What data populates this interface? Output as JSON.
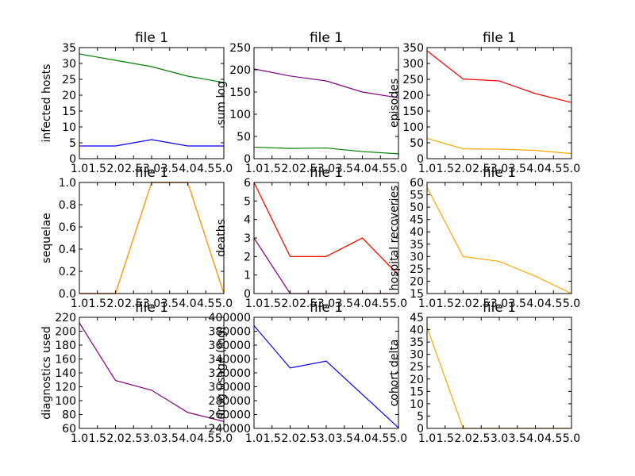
{
  "chart_data": [
    {
      "type": "line",
      "title": "file 1",
      "xlabel": "",
      "ylabel": "infected hosts",
      "x": [
        1,
        2,
        3,
        4,
        5
      ],
      "xlim": [
        1,
        5
      ],
      "xticks": [
        "1.0",
        "1.5",
        "2.0",
        "2.5",
        "3.0",
        "3.5",
        "4.0",
        "4.5",
        "5.0"
      ],
      "ylim": [
        0,
        35
      ],
      "yticks": [
        "0",
        "5",
        "10",
        "15",
        "20",
        "25",
        "30",
        "35"
      ],
      "grid": false,
      "series": [
        {
          "color": "#0000ff",
          "values": [
            4,
            4,
            6,
            4,
            4
          ]
        },
        {
          "color": "#008000",
          "values": [
            33,
            31,
            29,
            26,
            24
          ]
        }
      ]
    },
    {
      "type": "line",
      "title": "file 1",
      "xlabel": "",
      "ylabel": "sum log",
      "x": [
        1,
        2,
        3,
        4,
        5
      ],
      "xlim": [
        1,
        5
      ],
      "xticks": [
        "1.0",
        "1.5",
        "2.0",
        "2.5",
        "3.0",
        "3.5",
        "4.0",
        "4.5",
        "5.0"
      ],
      "ylim": [
        0,
        250
      ],
      "yticks": [
        "0",
        "50",
        "100",
        "150",
        "200",
        "250"
      ],
      "grid": false,
      "series": [
        {
          "color": "#800080",
          "values": [
            202,
            186,
            175,
            150,
            137
          ]
        },
        {
          "color": "#008000",
          "values": [
            26,
            23,
            24,
            16,
            11
          ]
        }
      ]
    },
    {
      "type": "line",
      "title": "file 1",
      "xlabel": "",
      "ylabel": "episodes",
      "x": [
        1,
        2,
        3,
        4,
        5
      ],
      "xlim": [
        1,
        5
      ],
      "xticks": [
        "1.0",
        "1.5",
        "2.0",
        "2.5",
        "3.0",
        "3.5",
        "4.0",
        "4.5",
        "5.0"
      ],
      "ylim": [
        0,
        350
      ],
      "yticks": [
        "0",
        "50",
        "100",
        "150",
        "200",
        "250",
        "300",
        "350"
      ],
      "grid": false,
      "series": [
        {
          "color": "#ff0000",
          "values": [
            340,
            251,
            245,
            205,
            177
          ]
        },
        {
          "color": "#ffa500",
          "values": [
            64,
            31,
            30,
            26,
            16
          ]
        }
      ]
    },
    {
      "type": "line",
      "title": "file 1",
      "xlabel": "",
      "ylabel": "sequelae",
      "x": [
        1,
        2,
        3,
        4,
        5
      ],
      "xlim": [
        1,
        5
      ],
      "xticks": [
        "1.0",
        "1.5",
        "2.0",
        "2.5",
        "3.0",
        "3.5",
        "4.0",
        "4.5",
        "5.0"
      ],
      "ylim": [
        0,
        1
      ],
      "yticks": [
        "0.0",
        "0.2",
        "0.4",
        "0.6",
        "0.8",
        "1.0"
      ],
      "grid": false,
      "series": [
        {
          "color": "#ff0000",
          "values": [
            0,
            0,
            1,
            1,
            0
          ]
        },
        {
          "color": "#ffa500",
          "values": [
            0,
            0,
            1,
            1,
            0
          ]
        }
      ]
    },
    {
      "type": "line",
      "title": "file 1",
      "xlabel": "",
      "ylabel": "deaths",
      "x": [
        1,
        2,
        3,
        4,
        5
      ],
      "xlim": [
        1,
        5
      ],
      "xticks": [
        "1.0",
        "1.5",
        "2.0",
        "2.5",
        "3.0",
        "3.5",
        "4.0",
        "4.5",
        "5.0"
      ],
      "ylim": [
        0,
        6
      ],
      "yticks": [
        "0",
        "1",
        "2",
        "3",
        "4",
        "5",
        "6"
      ],
      "grid": false,
      "series": [
        {
          "color": "#800080",
          "values": [
            3,
            0,
            0,
            0,
            0
          ]
        },
        {
          "color": "#ffa500",
          "values": [
            6,
            2,
            2,
            3,
            1
          ]
        },
        {
          "color": "#ff0000",
          "values": [
            6,
            2,
            2,
            3,
            1
          ]
        }
      ]
    },
    {
      "type": "line",
      "title": "file 1",
      "xlabel": "",
      "ylabel": "hospital recoveries",
      "x": [
        1,
        2,
        3,
        4,
        5
      ],
      "xlim": [
        1,
        5
      ],
      "xticks": [
        "1.0",
        "1.5",
        "2.0",
        "2.5",
        "3.0",
        "3.5",
        "4.0",
        "4.5",
        "5.0"
      ],
      "ylim": [
        15,
        60
      ],
      "yticks": [
        "15",
        "20",
        "25",
        "30",
        "35",
        "40",
        "45",
        "50",
        "55",
        "60"
      ],
      "grid": false,
      "series": [
        {
          "color": "#ffa500",
          "values": [
            58,
            30,
            28,
            22,
            15
          ]
        }
      ]
    },
    {
      "type": "line",
      "title": "file 1",
      "xlabel": "",
      "ylabel": "diagnostics used",
      "x": [
        1,
        2,
        3,
        4,
        5
      ],
      "xlim": [
        1,
        5
      ],
      "xticks": [
        "1.0",
        "1.5",
        "2.0",
        "2.5",
        "3.0",
        "3.5",
        "4.0",
        "4.5",
        "5.0"
      ],
      "ylim": [
        60,
        220
      ],
      "yticks": [
        "60",
        "80",
        "100",
        "120",
        "140",
        "160",
        "180",
        "200",
        "220"
      ],
      "grid": false,
      "series": [
        {
          "color": "#800080",
          "values": [
            212,
            129,
            115,
            83,
            70
          ]
        }
      ]
    },
    {
      "type": "line",
      "title": "file 1",
      "xlabel": "",
      "ylabel": "drug usage (mg)",
      "x": [
        1,
        2,
        3,
        4,
        5
      ],
      "xlim": [
        1,
        5
      ],
      "xticks": [
        "1.0",
        "1.5",
        "2.0",
        "2.5",
        "3.0",
        "3.5",
        "4.0",
        "4.5",
        "5.0"
      ],
      "ylim": [
        240000,
        400000
      ],
      "yticks": [
        "240000",
        "260000",
        "280000",
        "300000",
        "320000",
        "340000",
        "360000",
        "380000",
        "400000"
      ],
      "grid": false,
      "series": [
        {
          "color": "#0000ff",
          "values": [
            388000,
            327000,
            337000,
            289000,
            241000
          ]
        }
      ]
    },
    {
      "type": "line",
      "title": "file 1",
      "xlabel": "",
      "ylabel": "cohort delta",
      "x": [
        1,
        2,
        3,
        4,
        5
      ],
      "xlim": [
        1,
        5
      ],
      "xticks": [
        "1.0",
        "1.5",
        "2.0",
        "2.5",
        "3.0",
        "3.5",
        "4.0",
        "4.5",
        "5.0"
      ],
      "ylim": [
        0,
        45
      ],
      "yticks": [
        "0",
        "5",
        "10",
        "15",
        "20",
        "25",
        "30",
        "35",
        "40",
        "45"
      ],
      "grid": false,
      "series": [
        {
          "color": "#ffa500",
          "values": [
            41,
            0,
            0,
            0,
            0
          ]
        }
      ]
    }
  ]
}
